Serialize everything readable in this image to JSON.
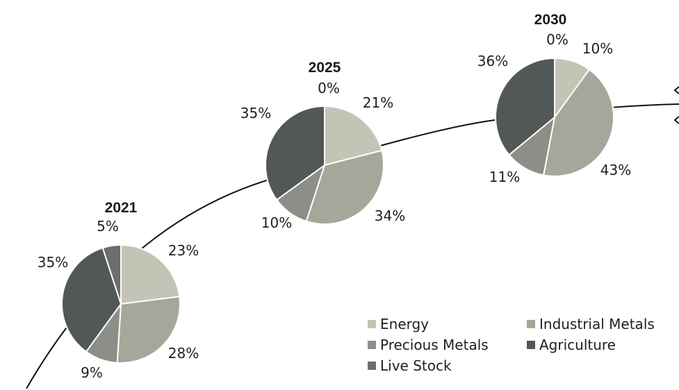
{
  "chart_data": {
    "type": "pie",
    "categories": [
      "Energy",
      "Industrial Metals",
      "Precious Metals",
      "Agriculture",
      "Live Stock"
    ],
    "colors": [
      "#c3c4b6",
      "#a6a79a",
      "#8d8e88",
      "#525757",
      "#6d6d6d"
    ],
    "pies": [
      {
        "title": "2021",
        "values": [
          23,
          28,
          9,
          35,
          5
        ],
        "labels": [
          "23%",
          "28%",
          "9%",
          "35%",
          "5%"
        ]
      },
      {
        "title": "2025",
        "values": [
          21,
          34,
          10,
          35,
          0
        ],
        "labels": [
          "21%",
          "34%",
          "10%",
          "35%",
          "0%"
        ]
      },
      {
        "title": "2030",
        "values": [
          10,
          43,
          11,
          36,
          0
        ],
        "labels": [
          "10%",
          "43%",
          "11%",
          "36%",
          "0%"
        ]
      }
    ],
    "legend": {
      "position": "bottom-right",
      "items": [
        "Energy",
        "Industrial Metals",
        "Precious Metals",
        "Agriculture",
        "Live Stock"
      ]
    }
  }
}
